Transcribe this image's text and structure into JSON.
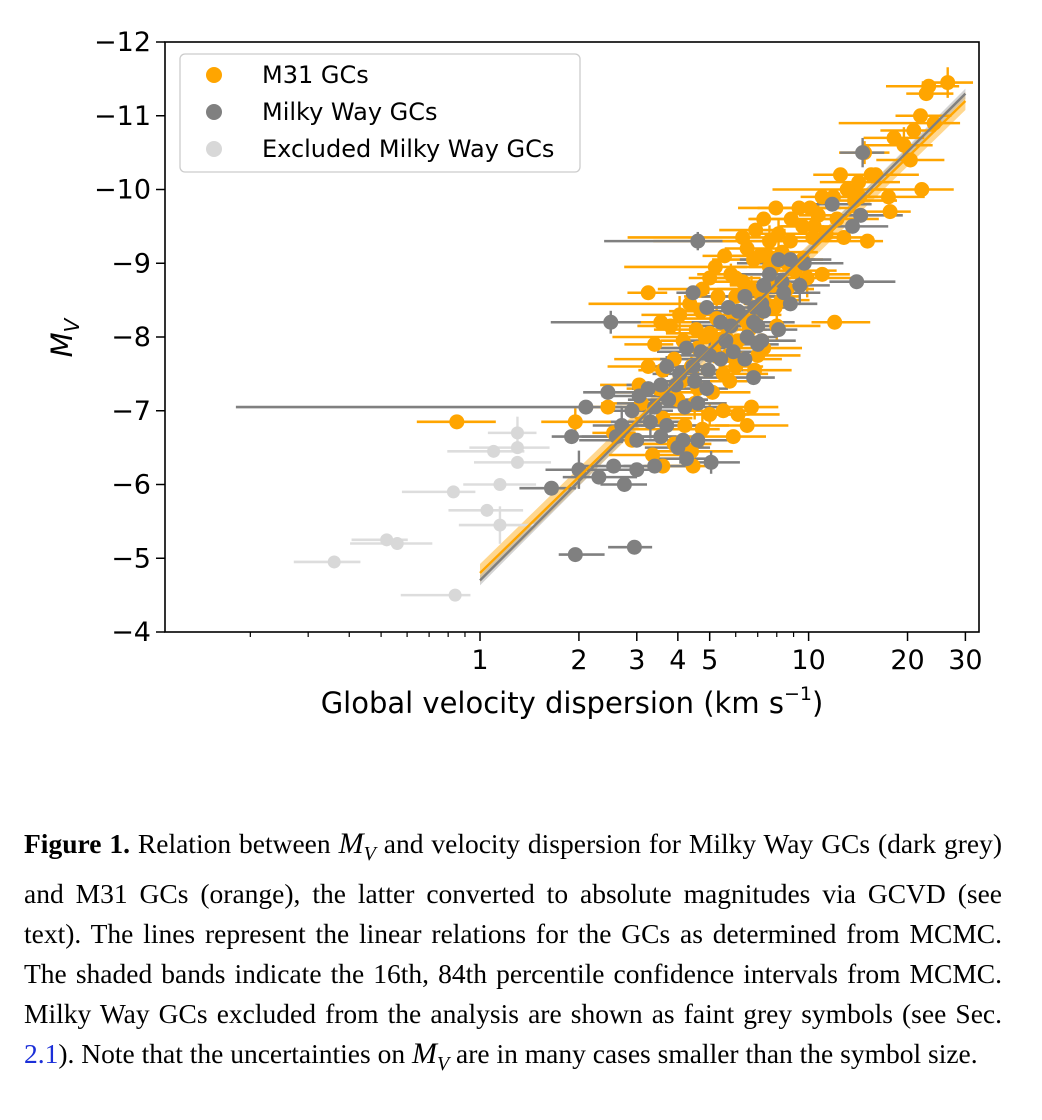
{
  "chart_data": {
    "type": "scatter",
    "title": "",
    "xlabel": "Global velocity dispersion (km s",
    "xlabel_sup": "−1",
    "xlabel_end": ")",
    "ylabel": "M",
    "ylabel_sub": "V",
    "x_scale": "log",
    "xlim": [
      0.11,
      33
    ],
    "ylim": [
      -4,
      -12
    ],
    "y_inverted": true,
    "grid": false,
    "legend_position": "top-left",
    "x_ticks": [
      {
        "value": 1,
        "label": "1"
      },
      {
        "value": 2,
        "label": "2"
      },
      {
        "value": 3,
        "label": "3"
      },
      {
        "value": 4,
        "label": "4"
      },
      {
        "value": 5,
        "label": "5"
      },
      {
        "value": 10,
        "label": "10"
      },
      {
        "value": 20,
        "label": "20"
      },
      {
        "value": 30,
        "label": "30"
      }
    ],
    "y_ticks": [
      {
        "value": -12,
        "label": "−12"
      },
      {
        "value": -11,
        "label": "−11"
      },
      {
        "value": -10,
        "label": "−10"
      },
      {
        "value": -9,
        "label": "−9"
      },
      {
        "value": -8,
        "label": "−8"
      },
      {
        "value": -7,
        "label": "−7"
      },
      {
        "value": -6,
        "label": "−6"
      },
      {
        "value": -5,
        "label": "−5"
      },
      {
        "value": -4,
        "label": "−4"
      }
    ],
    "series": [
      {
        "name": "M31 GCs",
        "color": "#ffa500",
        "errbar_color": "#ffa500",
        "points": [
          [
            26.5,
            -11.45
          ],
          [
            23.2,
            -11.4
          ],
          [
            22.8,
            -11.3
          ],
          [
            24.1,
            -10.9
          ],
          [
            21.9,
            -11.0
          ],
          [
            20.9,
            -10.8
          ],
          [
            19.5,
            -10.6
          ],
          [
            20.4,
            -10.4
          ],
          [
            18.2,
            -10.7
          ],
          [
            16.0,
            -10.2
          ],
          [
            17.5,
            -9.9
          ],
          [
            15.5,
            -10.2
          ],
          [
            14.8,
            -10.5
          ],
          [
            14.2,
            -10.1
          ],
          [
            13.1,
            -10.0
          ],
          [
            12.5,
            -10.2
          ],
          [
            11.9,
            -9.9
          ],
          [
            11.0,
            -9.9
          ],
          [
            10.7,
            -9.65
          ],
          [
            10.1,
            -9.75
          ],
          [
            9.35,
            -9.75
          ],
          [
            8.85,
            -9.6
          ],
          [
            7.95,
            -9.75
          ],
          [
            7.3,
            -9.6
          ],
          [
            8.1,
            -9.4
          ],
          [
            8.8,
            -9.3
          ],
          [
            10.4,
            -9.5
          ],
          [
            11.3,
            -9.4
          ],
          [
            12.2,
            -9.6
          ],
          [
            12.8,
            -9.35
          ],
          [
            13.8,
            -9.85
          ],
          [
            15.1,
            -9.3
          ],
          [
            17.7,
            -9.7
          ],
          [
            22.1,
            -10.0
          ],
          [
            14.3,
            -9.9
          ],
          [
            9.6,
            -9.5
          ],
          [
            7.6,
            -9.3
          ],
          [
            6.9,
            -9.45
          ],
          [
            7.5,
            -9.1
          ],
          [
            7.8,
            -8.95
          ],
          [
            8.6,
            -9.0
          ],
          [
            9.1,
            -8.9
          ],
          [
            9.9,
            -8.8
          ],
          [
            11.0,
            -8.85
          ],
          [
            6.5,
            -9.2
          ],
          [
            6.8,
            -9.05
          ],
          [
            5.55,
            -9.1
          ],
          [
            5.2,
            -8.95
          ],
          [
            5.8,
            -8.85
          ],
          [
            6.3,
            -8.75
          ],
          [
            5.0,
            -8.8
          ],
          [
            4.75,
            -8.65
          ],
          [
            5.3,
            -8.55
          ],
          [
            6.0,
            -8.55
          ],
          [
            6.7,
            -8.65
          ],
          [
            7.2,
            -8.55
          ],
          [
            7.8,
            -8.7
          ],
          [
            8.25,
            -8.5
          ],
          [
            4.35,
            -8.45
          ],
          [
            4.7,
            -8.35
          ],
          [
            5.25,
            -8.25
          ],
          [
            5.9,
            -8.3
          ],
          [
            6.5,
            -8.2
          ],
          [
            7.0,
            -8.3
          ],
          [
            7.4,
            -8.45
          ],
          [
            7.9,
            -8.4
          ],
          [
            4.05,
            -8.3
          ],
          [
            4.55,
            -8.1
          ],
          [
            5.0,
            -8.05
          ],
          [
            5.6,
            -8.0
          ],
          [
            6.1,
            -7.95
          ],
          [
            6.6,
            -8.1
          ],
          [
            7.2,
            -7.95
          ],
          [
            3.8,
            -8.15
          ],
          [
            3.25,
            -8.6
          ],
          [
            3.55,
            -8.2
          ],
          [
            4.15,
            -7.95
          ],
          [
            4.6,
            -7.85
          ],
          [
            5.15,
            -7.8
          ],
          [
            5.7,
            -7.75
          ],
          [
            6.3,
            -7.7
          ],
          [
            7.0,
            -7.75
          ],
          [
            3.4,
            -7.9
          ],
          [
            3.9,
            -7.7
          ],
          [
            4.4,
            -7.6
          ],
          [
            4.95,
            -7.55
          ],
          [
            5.5,
            -7.5
          ],
          [
            6.0,
            -7.6
          ],
          [
            3.6,
            -7.55
          ],
          [
            4.1,
            -7.4
          ],
          [
            4.6,
            -7.3
          ],
          [
            5.1,
            -7.25
          ],
          [
            3.25,
            -7.6
          ],
          [
            3.05,
            -7.35
          ],
          [
            3.5,
            -7.3
          ],
          [
            4.0,
            -7.15
          ],
          [
            4.5,
            -7.1
          ],
          [
            5.5,
            -7.0
          ],
          [
            6.1,
            -6.95
          ],
          [
            3.1,
            -7.1
          ],
          [
            3.6,
            -6.9
          ],
          [
            4.2,
            -6.8
          ],
          [
            4.75,
            -6.75
          ],
          [
            3.9,
            -6.55
          ],
          [
            3.35,
            -6.4
          ],
          [
            2.55,
            -6.7
          ],
          [
            2.9,
            -6.6
          ],
          [
            0.85,
            -6.85
          ],
          [
            1.95,
            -6.85
          ],
          [
            2.45,
            -7.05
          ],
          [
            6.5,
            -6.8
          ],
          [
            12.0,
            -8.2
          ],
          [
            6.7,
            -7.05
          ],
          [
            5.9,
            -6.65
          ],
          [
            5.0,
            -6.95
          ],
          [
            4.4,
            -6.45
          ],
          [
            3.6,
            -6.25
          ],
          [
            4.45,
            -6.25
          ],
          [
            8.6,
            -8.65
          ],
          [
            8.3,
            -9.15
          ],
          [
            9.6,
            -9.05
          ],
          [
            10.3,
            -9.35
          ],
          [
            7.6,
            -8.95
          ],
          [
            7.1,
            -9.1
          ],
          [
            6.3,
            -9.35
          ],
          [
            6.0,
            -8.8
          ],
          [
            8.0,
            -8.15
          ],
          [
            7.3,
            -7.85
          ],
          [
            6.85,
            -7.55
          ],
          [
            5.75,
            -7.4
          ],
          [
            5.3,
            -7.95
          ],
          [
            4.85,
            -8.0
          ]
        ]
      },
      {
        "name": "Milky Way GCs",
        "color": "#808080",
        "errbar_color": "#808080",
        "points": [
          [
            14.6,
            -10.5
          ],
          [
            11.8,
            -9.8
          ],
          [
            14.4,
            -9.65
          ],
          [
            13.6,
            -9.5
          ],
          [
            14.0,
            -8.75
          ],
          [
            9.7,
            -9.0
          ],
          [
            9.4,
            -8.7
          ],
          [
            8.8,
            -9.05
          ],
          [
            8.1,
            -9.05
          ],
          [
            7.6,
            -8.85
          ],
          [
            8.4,
            -8.6
          ],
          [
            7.3,
            -8.7
          ],
          [
            6.4,
            -8.55
          ],
          [
            7.2,
            -8.45
          ],
          [
            6.8,
            -8.2
          ],
          [
            6.1,
            -8.35
          ],
          [
            5.7,
            -8.4
          ],
          [
            5.8,
            -8.15
          ],
          [
            4.6,
            -9.3
          ],
          [
            4.45,
            -8.6
          ],
          [
            4.9,
            -8.4
          ],
          [
            5.4,
            -8.2
          ],
          [
            6.5,
            -8.0
          ],
          [
            5.6,
            -7.95
          ],
          [
            5.0,
            -7.75
          ],
          [
            4.7,
            -7.8
          ],
          [
            4.25,
            -7.85
          ],
          [
            4.45,
            -7.6
          ],
          [
            4.95,
            -7.55
          ],
          [
            5.4,
            -7.7
          ],
          [
            5.9,
            -7.8
          ],
          [
            6.4,
            -7.7
          ],
          [
            7.0,
            -7.9
          ],
          [
            8.1,
            -8.1
          ],
          [
            7.3,
            -8.35
          ],
          [
            6.85,
            -8.4
          ],
          [
            3.7,
            -7.6
          ],
          [
            4.05,
            -7.5
          ],
          [
            4.5,
            -7.4
          ],
          [
            4.9,
            -7.3
          ],
          [
            3.55,
            -7.35
          ],
          [
            3.25,
            -7.3
          ],
          [
            3.05,
            -7.2
          ],
          [
            3.75,
            -7.15
          ],
          [
            4.6,
            -7.1
          ],
          [
            4.2,
            -7.05
          ],
          [
            3.4,
            -7.05
          ],
          [
            2.9,
            -7.0
          ],
          [
            3.3,
            -6.85
          ],
          [
            3.7,
            -6.8
          ],
          [
            2.1,
            -7.05
          ],
          [
            2.45,
            -7.25
          ],
          [
            1.9,
            -6.65
          ],
          [
            2.6,
            -6.65
          ],
          [
            2.7,
            -6.8
          ],
          [
            3.0,
            -6.6
          ],
          [
            3.55,
            -6.65
          ],
          [
            4.15,
            -6.6
          ],
          [
            4.6,
            -6.6
          ],
          [
            4.25,
            -6.35
          ],
          [
            5.05,
            -6.3
          ],
          [
            3.4,
            -6.25
          ],
          [
            3.0,
            -6.2
          ],
          [
            2.55,
            -6.25
          ],
          [
            2.3,
            -6.1
          ],
          [
            2.75,
            -6.0
          ],
          [
            2.0,
            -6.2
          ],
          [
            1.65,
            -5.95
          ],
          [
            4.0,
            -6.5
          ],
          [
            3.95,
            -7.35
          ],
          [
            6.8,
            -7.45
          ],
          [
            7.2,
            -7.95
          ],
          [
            2.5,
            -8.2
          ],
          [
            8.8,
            -8.45
          ],
          [
            8.3,
            -8.75
          ],
          [
            1.95,
            -5.05
          ],
          [
            2.95,
            -5.15
          ],
          [
            7.0,
            -8.15
          ]
        ]
      },
      {
        "name": "Excluded Milky Way GCs",
        "color": "#d8d8d8",
        "errbar_color": "#dddddd",
        "points": [
          [
            1.3,
            -6.7
          ],
          [
            1.3,
            -6.5
          ],
          [
            1.3,
            -6.3
          ],
          [
            1.1,
            -6.45
          ],
          [
            1.15,
            -6.0
          ],
          [
            1.05,
            -5.65
          ],
          [
            1.15,
            -5.45
          ],
          [
            0.83,
            -5.9
          ],
          [
            0.52,
            -5.25
          ],
          [
            0.56,
            -5.2
          ],
          [
            0.36,
            -4.95
          ],
          [
            0.84,
            -4.5
          ]
        ]
      }
    ],
    "fit_lines": [
      {
        "series": "M31 GCs",
        "color": "#ffa500",
        "band_color": "#ffb733",
        "x_range": [
          1.0,
          30.0
        ],
        "y_range": [
          -4.8,
          -11.2
        ]
      },
      {
        "series": "Milky Way GCs",
        "color": "#808080",
        "band_color": "#b0b0b0",
        "x_range": [
          1.0,
          30.0
        ],
        "y_range": [
          -4.7,
          -11.3
        ]
      }
    ]
  },
  "caption": {
    "label": "Figure 1.",
    "part1": " Relation between ",
    "math1_main": "M",
    "math1_sub": "V",
    "part2": " and velocity dispersion for Milky Way GCs (dark grey) and M31 GCs (orange), the latter converted to absolute magnitudes via GCVD (see text). The lines represent the linear relations for the GCs as determined from MCMC. The shaded bands indicate the 16th, 84th percentile confidence intervals from MCMC. Milky Way GCs excluded from the analysis are shown as faint grey symbols (see Sec. ",
    "ref": "2.1",
    "part3": "). Note that the uncertainties on ",
    "math2_main": "M",
    "math2_sub": "V",
    "part4": " are in many cases smaller than the symbol size."
  }
}
